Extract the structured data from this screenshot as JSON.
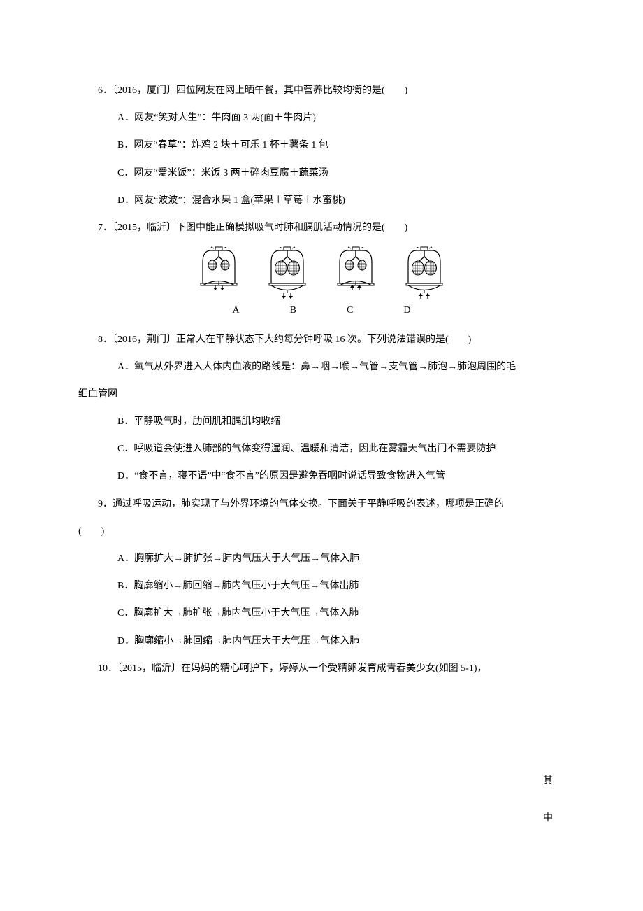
{
  "q6": {
    "stem": "6．〔2016，厦门〕四位网友在网上晒午餐，其中营养比较均衡的是(　　)",
    "a": "A．网友“笑对人生”：牛肉面 3 两(面＋牛肉片)",
    "b": "B．网友“春草”：炸鸡 2 块＋可乐 1 杯＋薯条 1 包",
    "c": "C．网友“爱米饭”：米饭 3 两＋碎肉豆腐＋蔬菜汤",
    "d": "D．网友“波波”：混合水果 1 盒(苹果＋草莓＋水蜜桃)"
  },
  "q7": {
    "stem": "7．〔2015，临沂〕下图中能正确模拟吸气时肺和膈肌活动情况的是(　　)",
    "labels": [
      "A",
      "B",
      "C",
      "D"
    ],
    "diagrams": [
      {
        "expanded": false,
        "arrows": "down"
      },
      {
        "expanded": true,
        "arrows": "down"
      },
      {
        "expanded": false,
        "arrows": "up"
      },
      {
        "expanded": true,
        "arrows": "up"
      }
    ],
    "stroke": "#000000",
    "hatch": "#000000",
    "bg": "#ffffff"
  },
  "q8": {
    "stem": "8．〔2016，荆门〕正常人在平静状态下大约每分钟呼吸 16 次。下列说法错误的是(　　)",
    "a1": "A．氧气从外界进入人体内血液的路线是：鼻→咽→喉→气管→支气管→肺泡→肺泡周围的毛",
    "a2": "细血管网",
    "b": "B．平静吸气时，肋间肌和膈肌均收缩",
    "c": "C．呼吸道会使进入肺部的气体变得湿润、温暖和清洁，因此在雾霾天气出门不需要防护",
    "d": "D．“食不言，寝不语”中“食不言”的原因是避免吞咽时说话导致食物进入气管"
  },
  "q9": {
    "stem": "9．通过呼吸运动，肺实现了与外界环境的气体交换。下面关于平静呼吸的表述，哪项是正确的",
    "stem2": "(　　)",
    "a": "A．胸廓扩大→肺扩张→肺内气压大于大气压→气体入肺",
    "b": "B．胸廓缩小→肺回缩→肺内气压小于大气压→气体出肺",
    "c": "C．胸廓扩大→肺扩张→肺内气压小于大气压→气体入肺",
    "d": "D．胸廓缩小→肺回缩→肺内气压大于大气压→气体入肺"
  },
  "q10": {
    "stem": "10．〔2015，临沂〕在妈妈的精心呵护下，婷婷从一个受精卵发育成青春美少女(如图 5-1)，"
  },
  "side": {
    "l1": "其",
    "l2": "中"
  }
}
